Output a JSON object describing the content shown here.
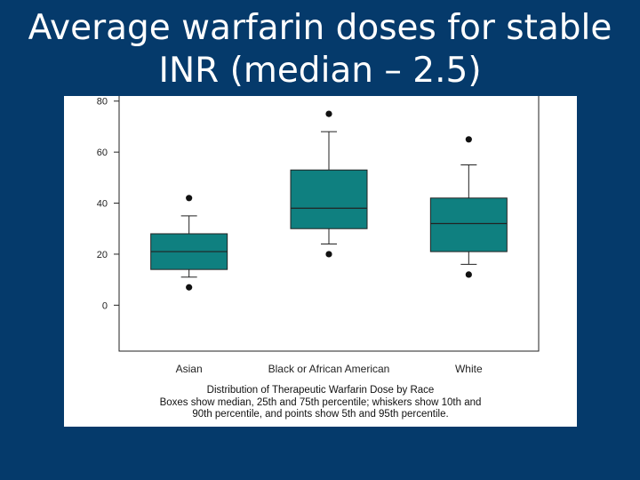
{
  "slide": {
    "title_line1": "Average warfarin doses for stable",
    "title_line2": "INR (median – 2.5)"
  },
  "colors": {
    "background": "#053a6b",
    "box_fill": "#0f8080",
    "panel": "#ffffff",
    "title_text": "#ffffff"
  },
  "chart_data": {
    "type": "box",
    "title": "",
    "xlabel": "",
    "ylabel": "",
    "ylim": [
      -18,
      82
    ],
    "y_ticks": [
      0,
      20,
      40,
      60,
      80
    ],
    "grid": false,
    "categories": [
      "Asian",
      "Black or African American",
      "White"
    ],
    "boxes": [
      {
        "category": "Asian",
        "p5": 7,
        "p10": 11,
        "q1": 14,
        "median": 21,
        "q3": 28,
        "p90": 35,
        "p95": 42
      },
      {
        "category": "Black or African American",
        "p5": 20,
        "p10": 24,
        "q1": 30,
        "median": 38,
        "q3": 53,
        "p90": 68,
        "p95": 75
      },
      {
        "category": "White",
        "p5": 12,
        "p10": 16,
        "q1": 21,
        "median": 32,
        "q3": 42,
        "p90": 55,
        "p95": 65
      }
    ],
    "caption": {
      "line1": "Distribution of Therapeutic Warfarin Dose by Race",
      "line2": "Boxes show median, 25th and 75th percentile; whiskers show 10th and",
      "line3": "90th percentile, and points show 5th and 95th percentile."
    }
  }
}
